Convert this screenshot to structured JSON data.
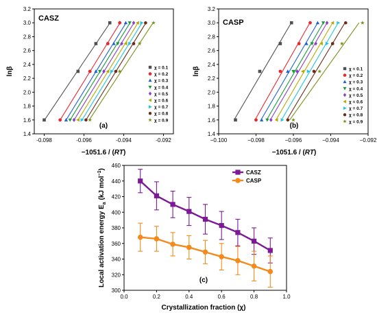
{
  "chart_data": [
    {
      "type": "scatter",
      "panel_title": "CASZ",
      "panel_letter": "(a)",
      "xlabel": "−1051.6 / (RT)",
      "ylabel": "lnβ",
      "xlim": [
        -0.0985,
        -0.0915
      ],
      "ylim": [
        1.4,
        3.2
      ],
      "xticks": [
        -0.098,
        -0.096,
        -0.094,
        -0.092
      ],
      "xtick_labels": [
        "-0.098",
        "-0.096",
        "-0.094",
        "-0.092"
      ],
      "yticks": [
        1.4,
        1.6,
        1.8,
        2.0,
        2.2,
        2.4,
        2.6,
        2.8,
        3.0,
        3.2
      ],
      "ytick_labels": [
        "1.4",
        "1.6",
        "1.8",
        "2.0",
        "2.2",
        "2.4",
        "2.6",
        "2.8",
        "3.0",
        "3.2"
      ],
      "legend_position": "bottom-right",
      "series": [
        {
          "name": "χ = 0.1",
          "color": "#505050",
          "marker": "square",
          "y": [
            1.6,
            2.3,
            2.7,
            3.0
          ],
          "x": [
            -0.098,
            -0.0963,
            -0.0954,
            -0.0947
          ]
        },
        {
          "name": "χ = 0.2",
          "color": "#e8272f",
          "marker": "circle",
          "y": [
            1.6,
            2.3,
            2.7,
            3.0
          ],
          "x": [
            -0.0972,
            -0.0957,
            -0.0948,
            -0.0942
          ]
        },
        {
          "name": "χ = 0.3",
          "color": "#1f5fd6",
          "marker": "triangle",
          "y": [
            1.6,
            2.3,
            2.7,
            3.0
          ],
          "x": [
            -0.0969,
            -0.0954,
            -0.0945,
            -0.0939
          ]
        },
        {
          "name": "χ = 0.4",
          "color": "#1a9a3a",
          "marker": "tridown",
          "y": [
            1.6,
            2.3,
            2.7,
            3.0
          ],
          "x": [
            -0.0967,
            -0.0952,
            -0.0943,
            -0.0937
          ]
        },
        {
          "name": "χ = 0.5",
          "color": "#8a3fc8",
          "marker": "diamond",
          "y": [
            1.6,
            2.3,
            2.7,
            3.0
          ],
          "x": [
            -0.0965,
            -0.095,
            -0.0941,
            -0.0935
          ]
        },
        {
          "name": "χ = 0.6",
          "color": "#b8a800",
          "marker": "trileft",
          "y": [
            1.6,
            2.3,
            2.7,
            3.0
          ],
          "x": [
            -0.0963,
            -0.0948,
            -0.0939,
            -0.0933
          ]
        },
        {
          "name": "χ = 0.7",
          "color": "#1fc4e0",
          "marker": "triright",
          "y": [
            1.6,
            2.3,
            2.7,
            3.0
          ],
          "x": [
            -0.0961,
            -0.0946,
            -0.0937,
            -0.0931
          ]
        },
        {
          "name": "χ = 0.8",
          "color": "#6b2a1a",
          "marker": "hexagon",
          "y": [
            1.6,
            2.3,
            2.7,
            3.0
          ],
          "x": [
            -0.0959,
            -0.0944,
            -0.0935,
            -0.0929
          ]
        },
        {
          "name": "χ = 0.9",
          "color": "#7a8f1a",
          "marker": "star",
          "y": [
            1.6,
            2.3,
            2.7,
            3.0
          ],
          "x": [
            -0.0957,
            -0.0942,
            -0.0932,
            -0.0925
          ]
        }
      ]
    },
    {
      "type": "scatter",
      "panel_title": "CASP",
      "panel_letter": "(b)",
      "xlabel": "−1051.6 / (RT)",
      "ylabel": "lnβ",
      "xlim": [
        -0.1,
        -0.092
      ],
      "ylim": [
        1.4,
        3.2
      ],
      "xticks": [
        -0.1,
        -0.098,
        -0.096,
        -0.094,
        -0.092
      ],
      "xtick_labels": [
        "−0.100",
        "−0.098",
        "−0.096",
        "−0.094",
        "−0.092"
      ],
      "yticks": [
        1.4,
        1.6,
        1.8,
        2.0,
        2.2,
        2.4,
        2.6,
        2.8,
        3.0,
        3.2
      ],
      "ytick_labels": [
        "1.4",
        "1.6",
        "1.8",
        "2.0",
        "2.2",
        "2.4",
        "2.6",
        "2.8",
        "3.0",
        "3.2"
      ],
      "legend_position": "bottom-right",
      "series": [
        {
          "name": "χ = 0.1",
          "color": "#505050",
          "marker": "square",
          "y": [
            1.6,
            2.3,
            2.7,
            3.0
          ],
          "x": [
            -0.0991,
            -0.0978,
            -0.0967,
            -0.0961
          ]
        },
        {
          "name": "χ = 0.2",
          "color": "#e8272f",
          "marker": "circle",
          "y": [
            1.6,
            2.3,
            2.7,
            3.0
          ],
          "x": [
            -0.098,
            -0.0967,
            -0.0957,
            -0.0951
          ]
        },
        {
          "name": "χ = 0.3",
          "color": "#1f5fd6",
          "marker": "triangle",
          "y": [
            1.6,
            2.3,
            2.7,
            3.0
          ],
          "x": [
            -0.0977,
            -0.0963,
            -0.0953,
            -0.0947
          ]
        },
        {
          "name": "χ = 0.4",
          "color": "#1a9a3a",
          "marker": "tridown",
          "y": [
            1.6,
            2.3,
            2.7,
            3.0
          ],
          "x": [
            -0.0974,
            -0.096,
            -0.095,
            -0.0944
          ]
        },
        {
          "name": "χ = 0.5",
          "color": "#8a3fc8",
          "marker": "diamond",
          "y": [
            1.6,
            2.3,
            2.7,
            3.0
          ],
          "x": [
            -0.0972,
            -0.0958,
            -0.0948,
            -0.0942
          ]
        },
        {
          "name": "χ = 0.6",
          "color": "#b8a800",
          "marker": "trileft",
          "y": [
            1.6,
            2.3,
            2.7,
            3.0
          ],
          "x": [
            -0.0969,
            -0.0955,
            -0.0945,
            -0.0939
          ]
        },
        {
          "name": "χ = 0.7",
          "color": "#1fc4e0",
          "marker": "triright",
          "y": [
            1.6,
            2.3,
            2.7,
            3.0
          ],
          "x": [
            -0.0966,
            -0.0952,
            -0.0942,
            -0.0936
          ]
        },
        {
          "name": "χ = 0.8",
          "color": "#6b2a1a",
          "marker": "hexagon",
          "y": [
            1.6,
            2.3,
            2.7,
            3.0
          ],
          "x": [
            -0.0963,
            -0.0949,
            -0.0939,
            -0.0932
          ]
        },
        {
          "name": "χ = 0.9",
          "color": "#7a8f1a",
          "marker": "star",
          "y": [
            1.6,
            2.3,
            2.7,
            3.0
          ],
          "x": [
            -0.096,
            -0.0946,
            -0.0934,
            -0.0923
          ]
        }
      ]
    },
    {
      "type": "line",
      "panel_letter": "(c)",
      "xlabel": "Crystallization fraction (χ)",
      "ylabel": "Local activation energy E",
      "ylabel_sub": "a",
      "ylabel_unit": " (kJ mol",
      "ylabel_sup": "−1",
      "ylabel_close": ")",
      "xlim": [
        0.0,
        1.0
      ],
      "ylim": [
        300,
        460
      ],
      "xticks": [
        0.0,
        0.2,
        0.4,
        0.6,
        0.8,
        1.0
      ],
      "xtick_labels": [
        "0.0",
        "0.2",
        "0.4",
        "0.6",
        "0.8",
        "1.0"
      ],
      "yticks": [
        300,
        320,
        340,
        360,
        380,
        400,
        420,
        440,
        460
      ],
      "ytick_labels": [
        "300",
        "320",
        "340",
        "360",
        "380",
        "400",
        "420",
        "440",
        "460"
      ],
      "legend_position": "top-right",
      "x": [
        0.1,
        0.2,
        0.3,
        0.4,
        0.5,
        0.6,
        0.7,
        0.8,
        0.9
      ],
      "series": [
        {
          "name": "CASZ",
          "color": "#7b1a94",
          "marker": "square",
          "values": [
            440,
            421,
            410,
            401,
            391,
            383,
            374,
            363,
            351
          ],
          "error": [
            15,
            18,
            17,
            18,
            19,
            18,
            17,
            17,
            16
          ]
        },
        {
          "name": "CASP",
          "color": "#f28a1c",
          "marker": "circle",
          "values": [
            368,
            366,
            359,
            355,
            349,
            343,
            338,
            331,
            324
          ],
          "error": [
            18,
            16,
            15,
            15,
            15,
            17,
            18,
            19,
            20
          ]
        }
      ]
    }
  ]
}
